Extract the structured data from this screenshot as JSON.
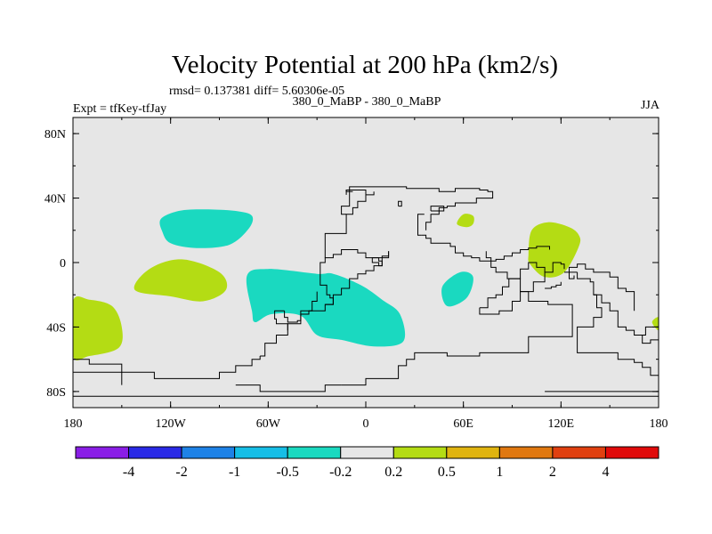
{
  "chart_data": {
    "type": "heatmap",
    "title": "Velocity Potential at 200 hPa (km2/s)",
    "subtitle_stats": "rmsd= 0.137381 diff= 5.60306e-05",
    "subtitle_center": "380_0_MaBP - 380_0_MaBP",
    "left_label": "Expt = tfKey-tfJay",
    "right_label": "JJA",
    "xlim": [
      -180,
      180
    ],
    "ylim": [
      -90,
      90
    ],
    "x_ticks": [
      {
        "value": -180,
        "label": "180"
      },
      {
        "value": -120,
        "label": "120W"
      },
      {
        "value": -60,
        "label": "60W"
      },
      {
        "value": 0,
        "label": "0"
      },
      {
        "value": 60,
        "label": "60E"
      },
      {
        "value": 120,
        "label": "120E"
      },
      {
        "value": 180,
        "label": "180"
      }
    ],
    "y_ticks": [
      {
        "value": 80,
        "label": "80N"
      },
      {
        "value": 40,
        "label": "40N"
      },
      {
        "value": 0,
        "label": "0"
      },
      {
        "value": -40,
        "label": "40S"
      },
      {
        "value": -80,
        "label": "80S"
      }
    ],
    "background_color": "#e6e6e6",
    "colorbar": {
      "colors": [
        "#8a1ee6",
        "#2a2ae6",
        "#1e82e6",
        "#16bee6",
        "#1ad9c0",
        "#e6e6e6",
        "#b4dc14",
        "#e0b410",
        "#e07810",
        "#e04010",
        "#e00a0a"
      ],
      "levels": [
        "-4",
        "-2",
        "-1",
        "-0.5",
        "-0.2",
        "0.2",
        "0.5",
        "1",
        "2",
        "4"
      ]
    },
    "regions": [
      {
        "level": "-0.5 to -0.2",
        "color": "#1ad9c0",
        "lonlat": [
          [
            -125,
            19
          ],
          [
            -126,
            27
          ],
          [
            -115,
            32
          ],
          [
            -100,
            33
          ],
          [
            -80,
            32
          ],
          [
            -70,
            29
          ],
          [
            -72,
            21
          ],
          [
            -84,
            11
          ],
          [
            -104,
            9
          ],
          [
            -120,
            12
          ]
        ]
      },
      {
        "level": "-0.5 to -0.2",
        "color": "#1ad9c0",
        "lonlat": [
          [
            -73,
            -8
          ],
          [
            -70,
            -30
          ],
          [
            -68,
            -37
          ],
          [
            -58,
            -32
          ],
          [
            -40,
            -33
          ],
          [
            -30,
            -45
          ],
          [
            -15,
            -48
          ],
          [
            5,
            -52
          ],
          [
            23,
            -49
          ],
          [
            21,
            -32
          ],
          [
            10,
            -23
          ],
          [
            -3,
            -14
          ],
          [
            -20,
            -7
          ],
          [
            -30,
            -7
          ],
          [
            -60,
            -4
          ]
        ]
      },
      {
        "level": "-0.5 to -0.2",
        "color": "#1ad9c0",
        "lonlat": [
          [
            50,
            -27
          ],
          [
            62,
            -22
          ],
          [
            66,
            -9
          ],
          [
            58,
            -6
          ],
          [
            47,
            -15
          ]
        ]
      },
      {
        "level": "0.2 to 0.5",
        "color": "#b4dc14",
        "lonlat": [
          [
            -142,
            -17
          ],
          [
            -133,
            -4
          ],
          [
            -113,
            2
          ],
          [
            -90,
            -6
          ],
          [
            -86,
            -17
          ],
          [
            -100,
            -24
          ],
          [
            -120,
            -21
          ]
        ]
      },
      {
        "level": "0.2 to 0.5",
        "color": "#b4dc14",
        "lonlat": [
          [
            -180,
            -24
          ],
          [
            -180,
            -58
          ],
          [
            -170,
            -58
          ],
          [
            -152,
            -53
          ],
          [
            -150,
            -40
          ],
          [
            -156,
            -27
          ],
          [
            -170,
            -23
          ]
        ]
      },
      {
        "level": "0.2 to 0.5",
        "color": "#b4dc14",
        "lonlat": [
          [
            56,
            24
          ],
          [
            60,
            30
          ],
          [
            66,
            29
          ],
          [
            66,
            24
          ],
          [
            62,
            22
          ]
        ]
      },
      {
        "level": "0.2 to 0.5",
        "color": "#b4dc14",
        "lonlat": [
          [
            100,
            5
          ],
          [
            102,
            20
          ],
          [
            112,
            25
          ],
          [
            125,
            22
          ],
          [
            131,
            17
          ],
          [
            131,
            10
          ],
          [
            122,
            -6
          ],
          [
            110,
            -9
          ],
          [
            101,
            -1
          ]
        ]
      },
      {
        "level": "0.2 to 0.5",
        "color": "#b4dc14",
        "lonlat": [
          [
            180,
            -34
          ],
          [
            176,
            -37
          ],
          [
            180,
            -42
          ]
        ]
      }
    ],
    "coastlines": [
      [
        [
          -180,
          -80
        ],
        [
          -180,
          -83
        ],
        [
          180,
          -83
        ],
        [
          180,
          -80
        ],
        [
          110,
          -80
        ]
      ],
      [
        [
          -180,
          -60
        ],
        [
          -170,
          -60
        ],
        [
          -170,
          -63
        ],
        [
          -150,
          -63
        ],
        [
          -150,
          -68
        ],
        [
          -130,
          -68
        ],
        [
          -130,
          -72
        ],
        [
          -90,
          -72
        ],
        [
          -90,
          -68
        ],
        [
          -80,
          -68
        ],
        [
          -80,
          -64
        ],
        [
          -70,
          -64
        ],
        [
          -70,
          -60
        ],
        [
          -65,
          -58
        ]
      ],
      [
        [
          -65,
          -58
        ],
        [
          -62,
          -50
        ],
        [
          -55,
          -45
        ],
        [
          -48,
          -38
        ],
        [
          -40,
          -30
        ],
        [
          -33,
          -24
        ],
        [
          -30,
          -18
        ]
      ],
      [
        [
          -180,
          -68
        ],
        [
          -150,
          -68
        ],
        [
          -150,
          -76
        ]
      ],
      [
        [
          -80,
          -76
        ],
        [
          -65,
          -76
        ],
        [
          -65,
          -80
        ],
        [
          -45,
          -80
        ],
        [
          -25,
          -80
        ],
        [
          -25,
          -76
        ],
        [
          -15,
          -76
        ]
      ],
      [
        [
          -15,
          -76
        ],
        [
          0,
          -76
        ],
        [
          0,
          -72
        ],
        [
          12,
          -72
        ],
        [
          20,
          -64
        ],
        [
          25,
          -60
        ],
        [
          30,
          -56
        ],
        [
          50,
          -58
        ],
        [
          60,
          -58
        ],
        [
          70,
          -56
        ],
        [
          100,
          -56
        ],
        [
          100,
          -46
        ],
        [
          127,
          -46
        ],
        [
          127,
          -26
        ],
        [
          112,
          -24
        ],
        [
          100,
          -18
        ],
        [
          95,
          -10
        ],
        [
          87,
          -6
        ],
        [
          80,
          -3
        ],
        [
          77,
          3
        ],
        [
          74,
          7
        ]
      ],
      [
        [
          -50,
          -30
        ],
        [
          -50,
          -34
        ],
        [
          -48,
          -37
        ],
        [
          -42,
          -36
        ],
        [
          -40,
          -32
        ],
        [
          -35,
          -30
        ],
        [
          -30,
          -30
        ],
        [
          -25,
          -26
        ],
        [
          -20,
          -20
        ],
        [
          -15,
          -16
        ],
        [
          -10,
          -10
        ],
        [
          -5,
          -7
        ],
        [
          0,
          -5
        ],
        [
          5,
          -2
        ],
        [
          10,
          3
        ],
        [
          14,
          7
        ]
      ],
      [
        [
          -50,
          -30
        ],
        [
          -56,
          -35
        ],
        [
          -55,
          -38
        ],
        [
          -48,
          -42
        ]
      ],
      [
        [
          -25,
          -26
        ],
        [
          -20,
          -22
        ],
        [
          -22,
          -20
        ],
        [
          -24,
          -14
        ],
        [
          -28,
          -8
        ],
        [
          -28,
          0
        ],
        [
          -25,
          3
        ],
        [
          -20,
          5
        ],
        [
          -15,
          8
        ],
        [
          -10,
          8
        ],
        [
          -5,
          6
        ],
        [
          0,
          3
        ],
        [
          5,
          3
        ],
        [
          10,
          4
        ],
        [
          14,
          7
        ]
      ],
      [
        [
          -25,
          3
        ],
        [
          -25,
          18
        ],
        [
          -12,
          18
        ],
        [
          -12,
          30
        ],
        [
          -8,
          34
        ],
        [
          -5,
          38
        ],
        [
          0,
          42
        ],
        [
          5,
          44
        ]
      ],
      [
        [
          -12,
          30
        ],
        [
          -15,
          35
        ],
        [
          -10,
          38
        ],
        [
          -10,
          45
        ]
      ],
      [
        [
          -12,
          42
        ],
        [
          -12,
          45
        ],
        [
          -5,
          45
        ],
        [
          0,
          45
        ],
        [
          0,
          42
        ]
      ],
      [
        [
          4,
          2
        ],
        [
          4,
          0
        ],
        [
          8,
          -2
        ],
        [
          10,
          1
        ],
        [
          8,
          3
        ],
        [
          4,
          2
        ]
      ],
      [
        [
          34,
          17
        ],
        [
          37,
          17
        ],
        [
          37,
          15
        ],
        [
          40,
          15
        ],
        [
          40,
          12
        ],
        [
          47,
          12
        ],
        [
          52,
          10
        ],
        [
          55,
          6
        ],
        [
          60,
          4
        ],
        [
          65,
          3
        ],
        [
          70,
          1
        ],
        [
          80,
          2
        ],
        [
          85,
          4
        ],
        [
          90,
          6
        ],
        [
          95,
          8
        ],
        [
          100,
          9
        ],
        [
          105,
          10
        ],
        [
          113,
          8
        ]
      ],
      [
        [
          34,
          17
        ],
        [
          32,
          20
        ],
        [
          32,
          30
        ],
        [
          36,
          30
        ]
      ],
      [
        [
          -8,
          44
        ],
        [
          -12,
          45
        ],
        [
          -10,
          47
        ],
        [
          -3,
          47
        ],
        [
          5,
          47
        ],
        [
          15,
          47
        ],
        [
          25,
          46
        ],
        [
          40,
          46
        ],
        [
          45,
          46
        ],
        [
          45,
          44
        ],
        [
          55,
          44
        ],
        [
          55,
          46
        ],
        [
          65,
          46
        ],
        [
          70,
          45
        ],
        [
          75,
          44
        ],
        [
          78,
          44
        ],
        [
          78,
          40
        ],
        [
          70,
          40
        ],
        [
          68,
          37
        ],
        [
          60,
          37
        ],
        [
          55,
          35
        ],
        [
          50,
          34
        ],
        [
          45,
          30
        ],
        [
          40,
          25
        ],
        [
          37,
          20
        ]
      ],
      [
        [
          20,
          35
        ],
        [
          20,
          38
        ],
        [
          22,
          38
        ],
        [
          22,
          35
        ],
        [
          20,
          35
        ]
      ],
      [
        [
          40,
          32
        ],
        [
          40,
          35
        ],
        [
          48,
          35
        ],
        [
          48,
          32
        ],
        [
          40,
          32
        ]
      ],
      [
        [
          70,
          -28
        ],
        [
          70,
          -32
        ],
        [
          82,
          -32
        ],
        [
          82,
          -30
        ],
        [
          90,
          -24
        ],
        [
          95,
          -18
        ],
        [
          103,
          -12
        ],
        [
          110,
          -6
        ],
        [
          115,
          0
        ],
        [
          120,
          -1
        ],
        [
          122,
          -4
        ]
      ],
      [
        [
          70,
          -28
        ],
        [
          75,
          -22
        ],
        [
          80,
          -20
        ],
        [
          84,
          -15
        ],
        [
          88,
          -10
        ],
        [
          95,
          -4
        ],
        [
          100,
          0
        ],
        [
          105,
          -3
        ],
        [
          110,
          -6
        ]
      ],
      [
        [
          122,
          -6
        ],
        [
          125,
          -10
        ],
        [
          128,
          -8
        ]
      ],
      [
        [
          130,
          -6
        ],
        [
          130,
          -10
        ],
        [
          135,
          -10
        ],
        [
          138,
          -12
        ],
        [
          140,
          -20
        ],
        [
          145,
          -25
        ],
        [
          150,
          -30
        ],
        [
          155,
          -34
        ],
        [
          155,
          -40
        ],
        [
          160,
          -42
        ],
        [
          165,
          -45
        ],
        [
          170,
          -45
        ],
        [
          172,
          -40
        ],
        [
          180,
          -38
        ]
      ],
      [
        [
          130,
          -6
        ],
        [
          125,
          -3
        ],
        [
          130,
          -1
        ],
        [
          135,
          -4
        ],
        [
          140,
          -6
        ],
        [
          145,
          -6
        ],
        [
          150,
          -9
        ],
        [
          155,
          -10
        ],
        [
          155,
          -16
        ],
        [
          160,
          -18
        ],
        [
          165,
          -25
        ],
        [
          165,
          -30
        ]
      ],
      [
        [
          140,
          -20
        ],
        [
          142,
          -28
        ],
        [
          145,
          -34
        ],
        [
          140,
          -40
        ],
        [
          132,
          -40
        ],
        [
          130,
          -42
        ],
        [
          130,
          -56
        ],
        [
          140,
          -56
        ],
        [
          150,
          -56
        ],
        [
          155,
          -60
        ],
        [
          160,
          -60
        ],
        [
          165,
          -62
        ],
        [
          170,
          -65
        ],
        [
          175,
          -70
        ],
        [
          180,
          -72
        ]
      ],
      [
        [
          110,
          -16
        ],
        [
          114,
          -15
        ],
        [
          117,
          -14
        ],
        [
          120,
          -12
        ]
      ],
      [
        [
          165,
          -45
        ],
        [
          170,
          -50
        ],
        [
          175,
          -48
        ],
        [
          180,
          -50
        ]
      ]
    ]
  }
}
